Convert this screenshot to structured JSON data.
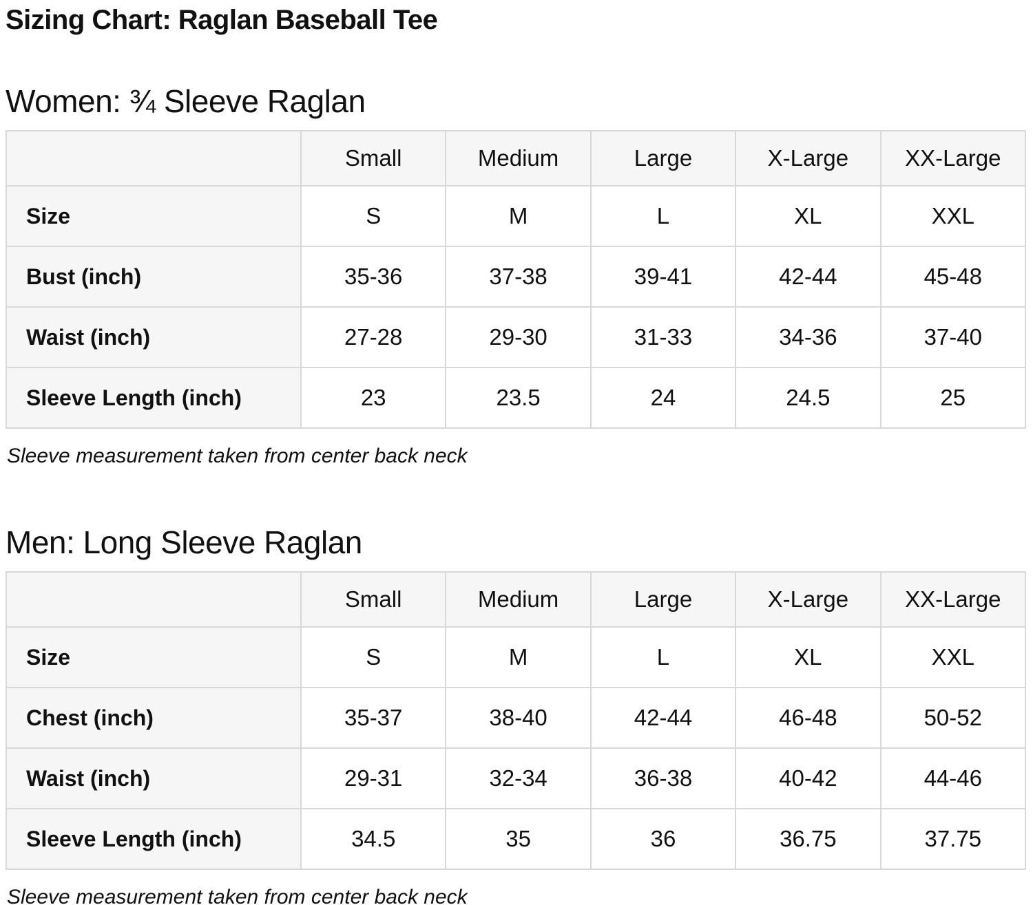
{
  "page": {
    "title": "Sizing Chart: Raglan Baseball Tee"
  },
  "colors": {
    "text": "#111111",
    "header_cell_bg": "#f6f6f6",
    "body_cell_bg": "#ffffff",
    "grid": "#d8d8d8",
    "page_bg": "#ffffff"
  },
  "sections": [
    {
      "id": "women",
      "heading": "Women: ¾ Sleeve Raglan",
      "table": {
        "columns": [
          "Small",
          "Medium",
          "Large",
          "X-Large",
          "XX-Large"
        ],
        "rows": [
          {
            "label": "Size",
            "values": [
              "S",
              "M",
              "L",
              "XL",
              "XXL"
            ]
          },
          {
            "label": "Bust (inch)",
            "values": [
              "35-36",
              "37-38",
              "39-41",
              "42-44",
              "45-48"
            ]
          },
          {
            "label": "Waist (inch)",
            "values": [
              "27-28",
              "29-30",
              "31-33",
              "34-36",
              "37-40"
            ]
          },
          {
            "label": "Sleeve Length (inch)",
            "values": [
              "23",
              "23.5",
              "24",
              "24.5",
              "25"
            ]
          }
        ]
      },
      "note": "Sleeve measurement taken from center back neck"
    },
    {
      "id": "men",
      "heading": "Men: Long Sleeve Raglan",
      "table": {
        "columns": [
          "Small",
          "Medium",
          "Large",
          "X-Large",
          "XX-Large"
        ],
        "rows": [
          {
            "label": "Size",
            "values": [
              "S",
              "M",
              "L",
              "XL",
              "XXL"
            ]
          },
          {
            "label": "Chest (inch)",
            "values": [
              "35-37",
              "38-40",
              "42-44",
              "46-48",
              "50-52"
            ]
          },
          {
            "label": "Waist (inch)",
            "values": [
              "29-31",
              "32-34",
              "36-38",
              "40-42",
              "44-46"
            ]
          },
          {
            "label": "Sleeve Length (inch)",
            "values": [
              "34.5",
              "35",
              "36",
              "36.75",
              "37.75"
            ]
          }
        ]
      },
      "note": "Sleeve measurement taken from center back neck"
    }
  ]
}
